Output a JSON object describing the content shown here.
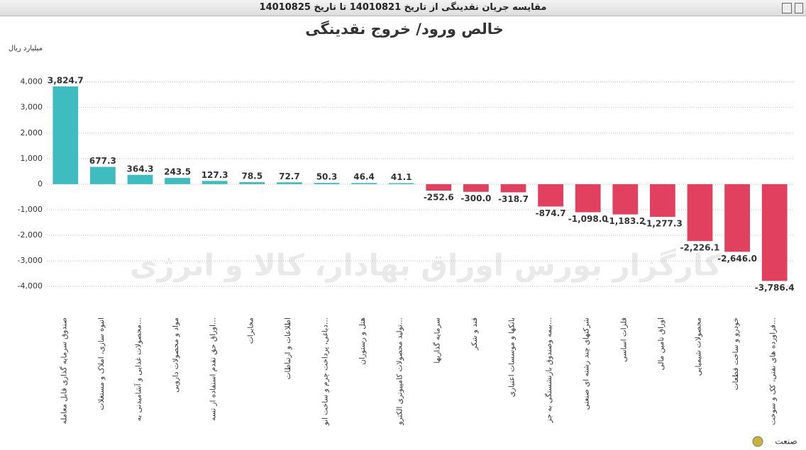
{
  "window_title": "مقایسه جریان نقدینگی از تاریخ 14010821 تا تاریخ 14010825",
  "chart_data": {
    "type": "bar",
    "title": "خالص ورود/ خروج نقدینگی",
    "y_axis_label": "میلیارد ریال",
    "x_axis_label": "صنعت",
    "watermark": "کارگزار بورس اوراق بهادار، کالا و انرژی",
    "categories": [
      "صندوق سرمایه گذاری قابل معامله",
      "انبوه سازی، املاک و مستغلات",
      "محصولات غذایی و آشامیدنی به...",
      "مواد و محصولات دارویی",
      "اوراق حق تقدم استفاده از تسه...",
      "مخابرات",
      "اطلاعات و ارتباطات",
      "دباغی، پرداخت چرم و ساخت انو...",
      "هتل و رستوران",
      "تولید محصولات کامپیوتری الکترو...",
      "سرمایه گذاریها",
      "قند و شکر",
      "بانکها و موسسات اعتباری",
      "بیمه وصندوق بازنشستگی به جز...",
      "شرکتهای چند رشته ای صنعتی",
      "فلزات اساسی",
      "اوراق تامین مالی",
      "محصولات شیمیایی",
      "خودرو و ساخت قطعات",
      "فراورده های نفتی، کک و سوخت..."
    ],
    "values": [
      3824.7,
      677.3,
      364.3,
      243.5,
      127.3,
      78.5,
      72.7,
      50.3,
      46.4,
      41.1,
      -252.6,
      -300.0,
      -318.7,
      -874.7,
      -1098.0,
      -1183.2,
      -1277.3,
      -2226.1,
      -2646.0,
      -3786.4
    ],
    "value_labels": [
      "3,824.7",
      "677.3",
      "364.3",
      "243.5",
      "127.3",
      "78.5",
      "72.7",
      "50.3",
      "46.4",
      "41.1",
      "-252.6",
      "-300.0",
      "-318.7",
      "-874.7",
      "-1,098.0",
      "-1,183.2",
      "-1,277.3",
      "-2,226.1",
      "-2,646.0",
      "-3,786.4"
    ],
    "color_positive": "#3fbcbf",
    "color_negative": "#e2405f",
    "ylim": [
      -4800,
      4600
    ],
    "yticks": [
      {
        "value": -4000,
        "label": "-4,000"
      },
      {
        "value": -3000,
        "label": "-3,000"
      },
      {
        "value": -2000,
        "label": "-2,000"
      },
      {
        "value": -1000,
        "label": "-1,000"
      },
      0,
      {
        "value": 1000,
        "label": "1,000"
      },
      {
        "value": 2000,
        "label": "2,000"
      },
      {
        "value": 3000,
        "label": "3,000"
      },
      {
        "value": 4000,
        "label": "4,000"
      }
    ],
    "grid": true
  }
}
